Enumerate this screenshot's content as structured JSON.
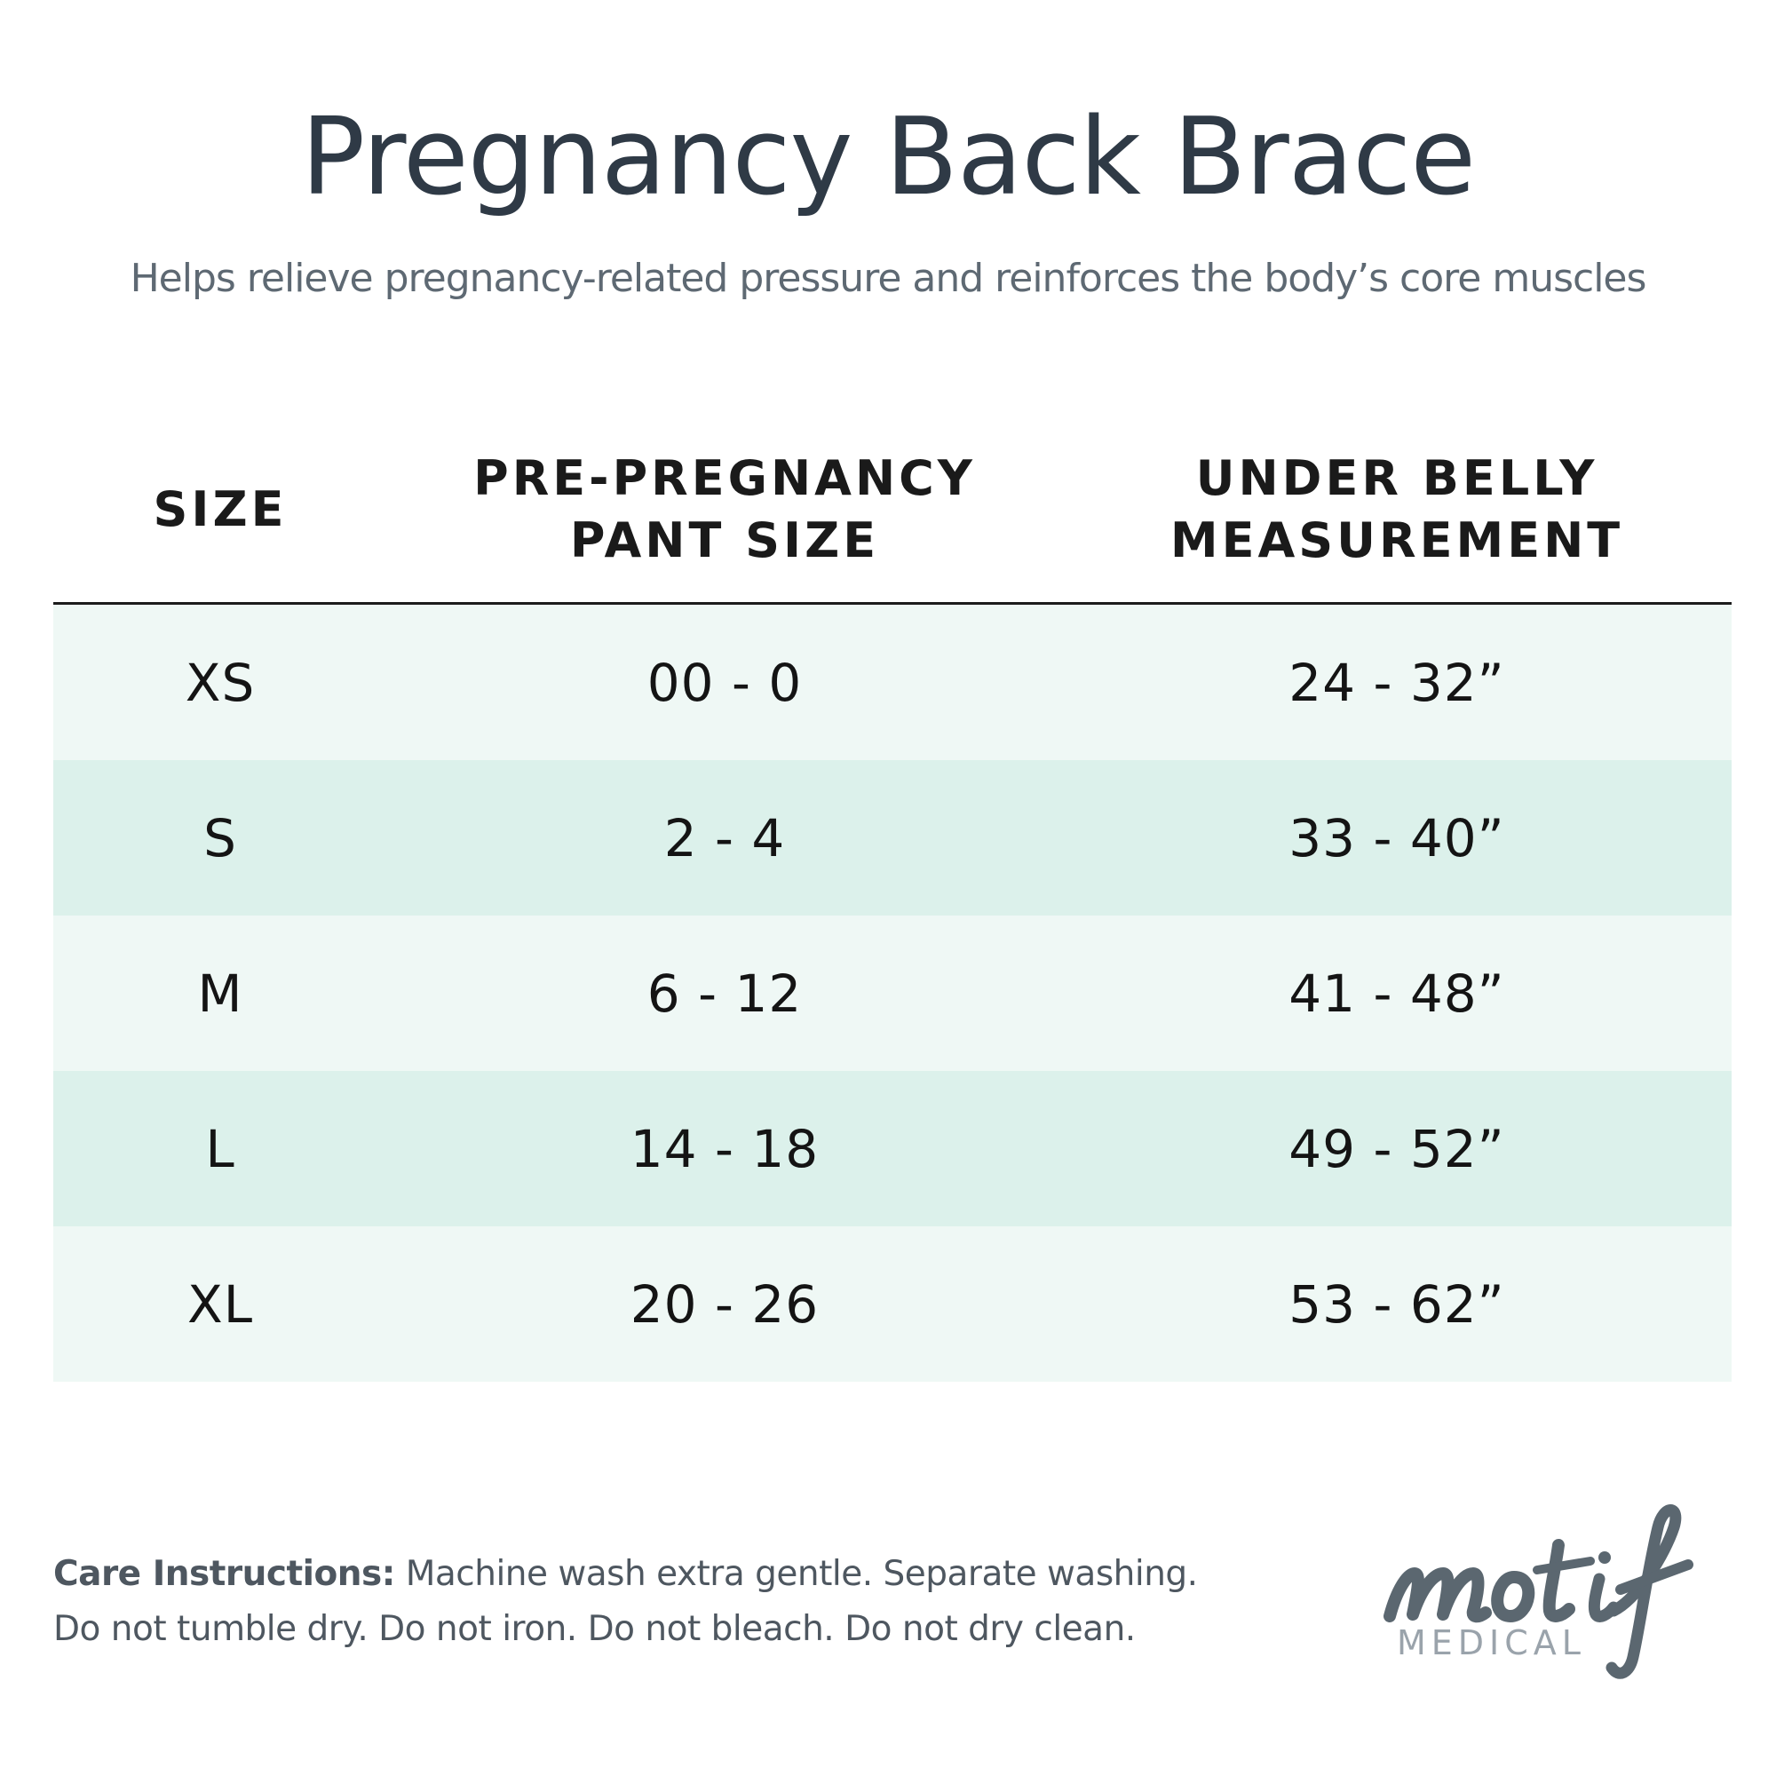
{
  "header": {
    "title": "Pregnancy Back Brace",
    "subtitle": "Helps relieve pregnancy-related pressure and reinforces the body’s core muscles"
  },
  "table": {
    "columns": [
      {
        "line1": "SIZE",
        "line2": ""
      },
      {
        "line1": "PRE-PREGNANCY",
        "line2": "PANT SIZE"
      },
      {
        "line1": "UNDER BELLY",
        "line2": "MEASUREMENT"
      }
    ],
    "rows": [
      {
        "size": "XS",
        "pant": "00 - 0",
        "belly": "24 - 32”"
      },
      {
        "size": "S",
        "pant": "2 - 4",
        "belly": "33 - 40”"
      },
      {
        "size": "M",
        "pant": "6 - 12",
        "belly": "41 - 48”"
      },
      {
        "size": "L",
        "pant": "14 - 18",
        "belly": "49 - 52”"
      },
      {
        "size": "XL",
        "pant": "20 - 26",
        "belly": "53 - 62”"
      }
    ],
    "row_colors": [
      "#eff8f5",
      "#dcf1eb"
    ]
  },
  "care": {
    "label": "Care Instructions:",
    "line1": "Machine wash extra gentle. Separate washing.",
    "line2": "Do not tumble dry. Do not iron. Do not bleach. Do not dry clean."
  },
  "logo": {
    "wordmark": "motif",
    "sub": "MEDICAL",
    "color": "#5b6770"
  }
}
